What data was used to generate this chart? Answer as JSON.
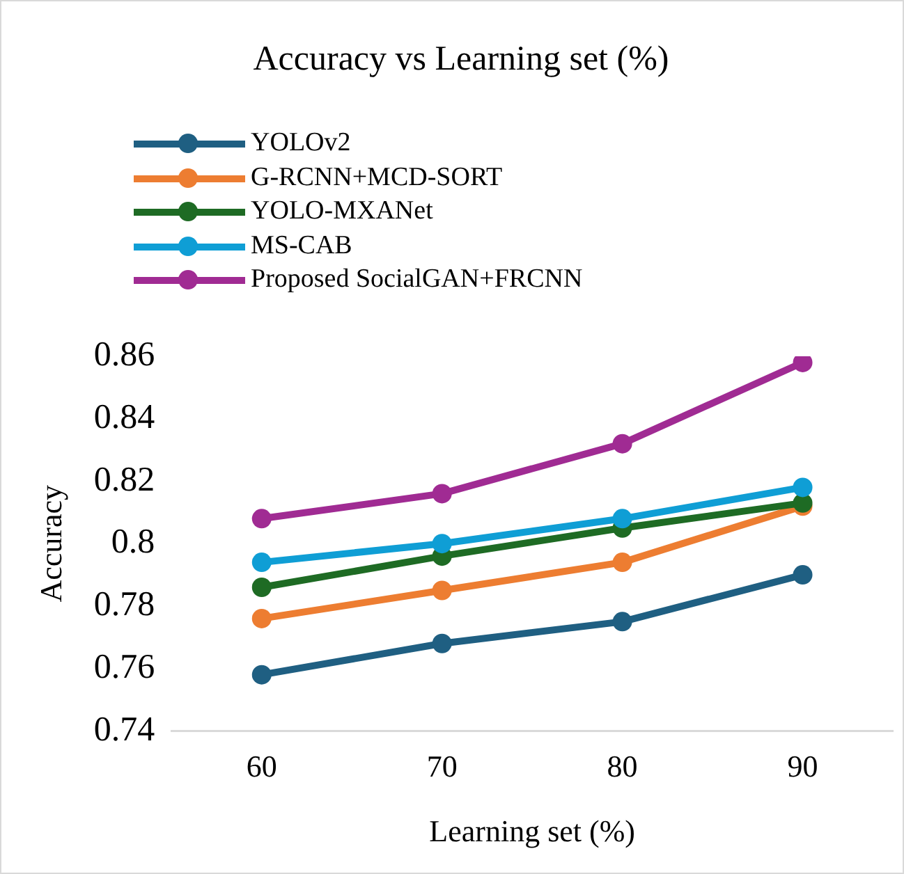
{
  "chart_data": {
    "type": "line",
    "title": "Accuracy vs Learning set (%)",
    "xlabel": "Learning set (%)",
    "ylabel": "Accuracy",
    "categories": [
      "60",
      "70",
      "80",
      "90"
    ],
    "series": [
      {
        "name": "YOLOv2",
        "color": "#1f5f82",
        "values": [
          0.758,
          0.768,
          0.775,
          0.79
        ]
      },
      {
        "name": "G-RCNN+MCD-SORT",
        "color": "#ed7d31",
        "values": [
          0.776,
          0.785,
          0.794,
          0.812
        ]
      },
      {
        "name": "YOLO-MXANet",
        "color": "#1e6b24",
        "values": [
          0.786,
          0.796,
          0.805,
          0.813
        ]
      },
      {
        "name": "MS-CAB",
        "color": "#0f9ed5",
        "values": [
          0.794,
          0.8,
          0.808,
          0.818
        ]
      },
      {
        "name": "Proposed SocialGAN+FRCNN",
        "color": "#a02b93",
        "values": [
          0.808,
          0.816,
          0.832,
          0.858
        ]
      }
    ],
    "ylim": [
      0.74,
      0.86
    ],
    "yticks": [
      0.74,
      0.76,
      0.78,
      0.8,
      0.82,
      0.84,
      0.86
    ],
    "grid": false,
    "legend": "top",
    "marker": "circle",
    "line_style": "solid"
  }
}
